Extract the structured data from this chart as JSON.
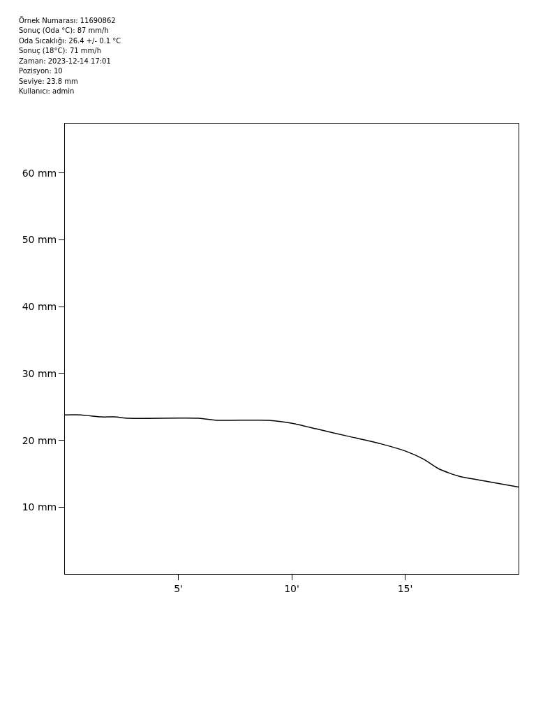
{
  "chart_data": {
    "type": "line",
    "annotations": [
      "Örnek Numarası: 11690862",
      "Sonuç (Oda °C): 87 mm/h",
      "Oda Sıcaklığı: 26.4 +/- 0.1 °C",
      "Sonuç (18°C): 71 mm/h",
      "Zaman: 2023-12-14 17:01",
      "Pozisyon: 10",
      "Seviye: 23.8 mm",
      "Kullanıcı: admin"
    ],
    "x": [
      0,
      0.7,
      1.6,
      2.2,
      2.8,
      5.9,
      6.7,
      9.0,
      10.1,
      11.1,
      12.5,
      13.9,
      15.0,
      15.8,
      16.5,
      17.4,
      18.7,
      20
    ],
    "series": [
      {
        "color": "#000000",
        "values": [
          23.8,
          23.8,
          23.5,
          23.5,
          23.3,
          23.3,
          23.0,
          23.0,
          22.5,
          21.7,
          20.6,
          19.5,
          18.4,
          17.2,
          15.7,
          14.6,
          13.8,
          13.0
        ]
      }
    ],
    "xlim": [
      0,
      20
    ],
    "ylim": [
      0,
      67.4
    ],
    "xticks": [
      {
        "value": 5,
        "label": "5'"
      },
      {
        "value": 10,
        "label": "10'"
      },
      {
        "value": 15,
        "label": "15'"
      }
    ],
    "yticks": [
      {
        "value": 10,
        "label": "10 mm"
      },
      {
        "value": 20,
        "label": "20 mm"
      },
      {
        "value": 30,
        "label": "30 mm"
      },
      {
        "value": 40,
        "label": "40 mm"
      },
      {
        "value": 50,
        "label": "50 mm"
      },
      {
        "value": 60,
        "label": "60 mm"
      }
    ],
    "marker": "none",
    "line_style": "solid"
  }
}
